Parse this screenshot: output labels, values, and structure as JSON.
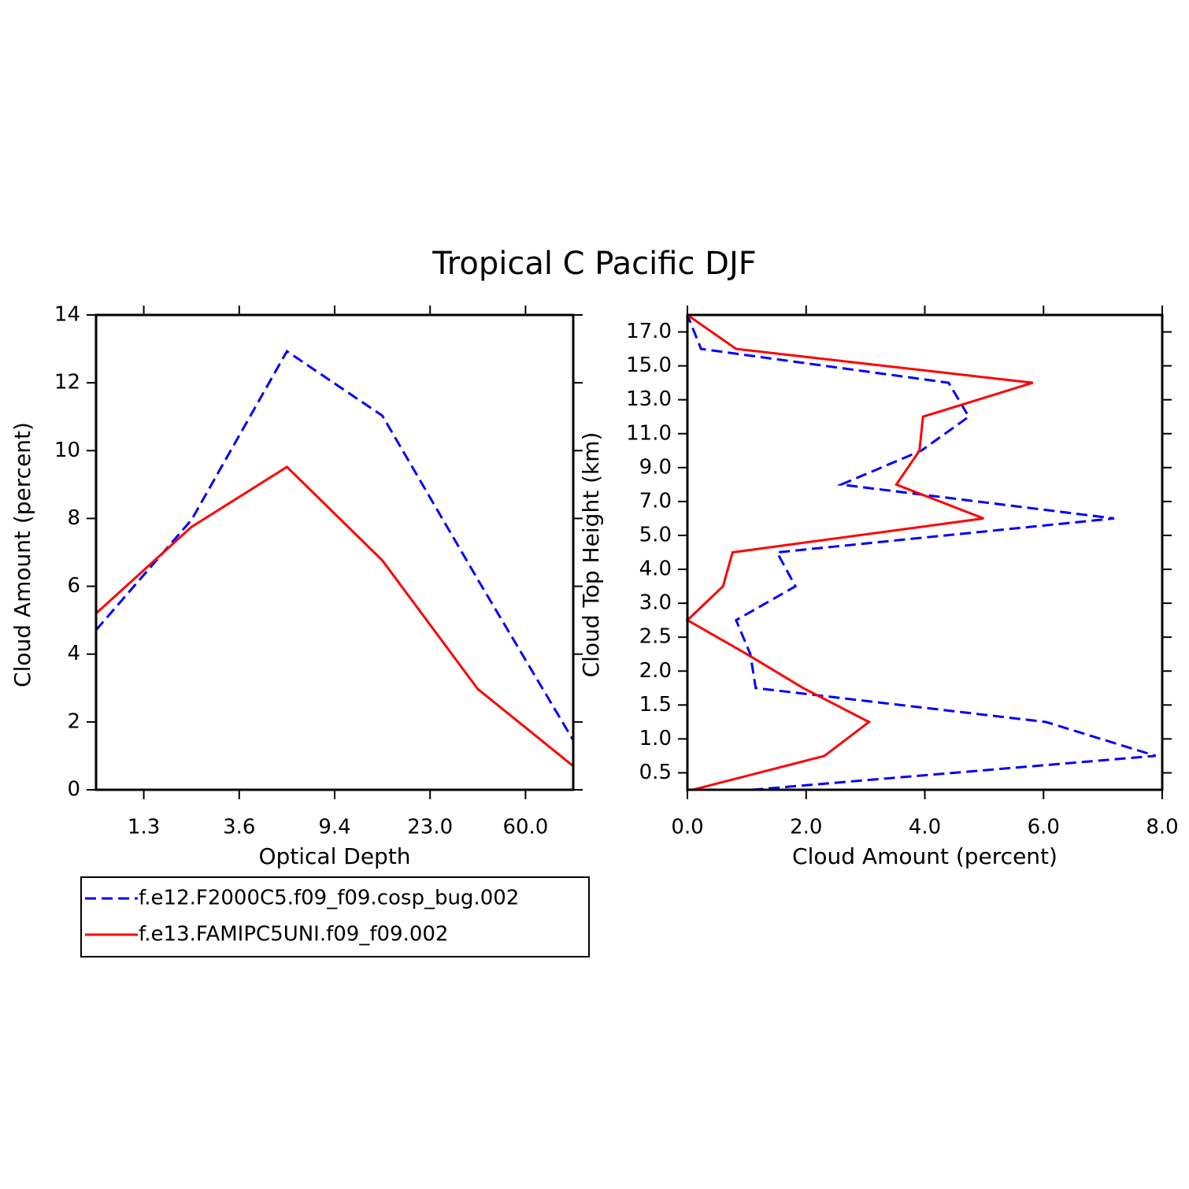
{
  "title": "Tropical C Pacific DJF",
  "chart_data": [
    {
      "type": "line",
      "value_axis": "y",
      "xlabel": "Optical Depth",
      "ylabel": "Cloud Amount (percent)",
      "xlim": [
        0,
        5
      ],
      "xticks": [
        {
          "value": 0.5,
          "label": "1.3"
        },
        {
          "value": 1.5,
          "label": "3.6"
        },
        {
          "value": 2.5,
          "label": "9.4"
        },
        {
          "value": 3.5,
          "label": "23.0"
        },
        {
          "value": 4.5,
          "label": "60.0"
        }
      ],
      "ylim": [
        0,
        14
      ],
      "yticks": [
        0,
        2,
        4,
        6,
        8,
        10,
        12,
        14
      ],
      "legend": "below",
      "series": [
        {
          "name": "f.e12.F2000C5.f09_f09.cosp_bug.002",
          "color": "#0000ff",
          "dash": "dashed",
          "values": [
            4.71,
            7.96,
            12.93,
            11.03,
            6.2,
            1.46
          ]
        },
        {
          "name": "f.e13.FAMIPC5UNI.f09_f09.002",
          "color": "#ff0000",
          "dash": "solid",
          "values": [
            5.2,
            7.75,
            9.52,
            6.76,
            2.97,
            0.7
          ]
        }
      ]
    },
    {
      "type": "line",
      "value_axis": "x",
      "xlabel": "Cloud Amount (percent)",
      "ylabel": "Cloud Top Height (km)",
      "xlim": [
        0,
        8
      ],
      "xticks": [
        {
          "value": 0,
          "label": "0.0"
        },
        {
          "value": 2,
          "label": "2.0"
        },
        {
          "value": 4,
          "label": "4.0"
        },
        {
          "value": 6,
          "label": "6.0"
        },
        {
          "value": 8,
          "label": "8.0"
        }
      ],
      "ylim": [
        0,
        14
      ],
      "yticks": [
        {
          "value": 0.5,
          "label": "0.5"
        },
        {
          "value": 1.5,
          "label": "1.0"
        },
        {
          "value": 2.5,
          "label": "1.5"
        },
        {
          "value": 3.5,
          "label": "2.0"
        },
        {
          "value": 4.5,
          "label": "2.5"
        },
        {
          "value": 5.5,
          "label": "3.0"
        },
        {
          "value": 6.5,
          "label": "4.0"
        },
        {
          "value": 7.5,
          "label": "5.0"
        },
        {
          "value": 8.5,
          "label": "7.0"
        },
        {
          "value": 9.5,
          "label": "9.0"
        },
        {
          "value": 10.5,
          "label": "11.0"
        },
        {
          "value": 11.5,
          "label": "13.0"
        },
        {
          "value": 12.5,
          "label": "15.0"
        },
        {
          "value": 13.5,
          "label": "17.0"
        }
      ],
      "series": [
        {
          "color": "#0000ff",
          "dash": "dashed",
          "values": [
            1.09,
            7.89,
            6.04,
            1.15,
            1.06,
            0.82,
            1.82,
            1.51,
            7.19,
            2.59,
            3.94,
            4.74,
            4.4,
            0.23,
            0
          ]
        },
        {
          "color": "#ff0000",
          "dash": "solid",
          "values": [
            0.09,
            2.31,
            3.06,
            1.95,
            1.0,
            0,
            0.6,
            0.76,
            4.99,
            3.52,
            3.91,
            3.97,
            5.82,
            0.82,
            0
          ]
        }
      ]
    }
  ]
}
